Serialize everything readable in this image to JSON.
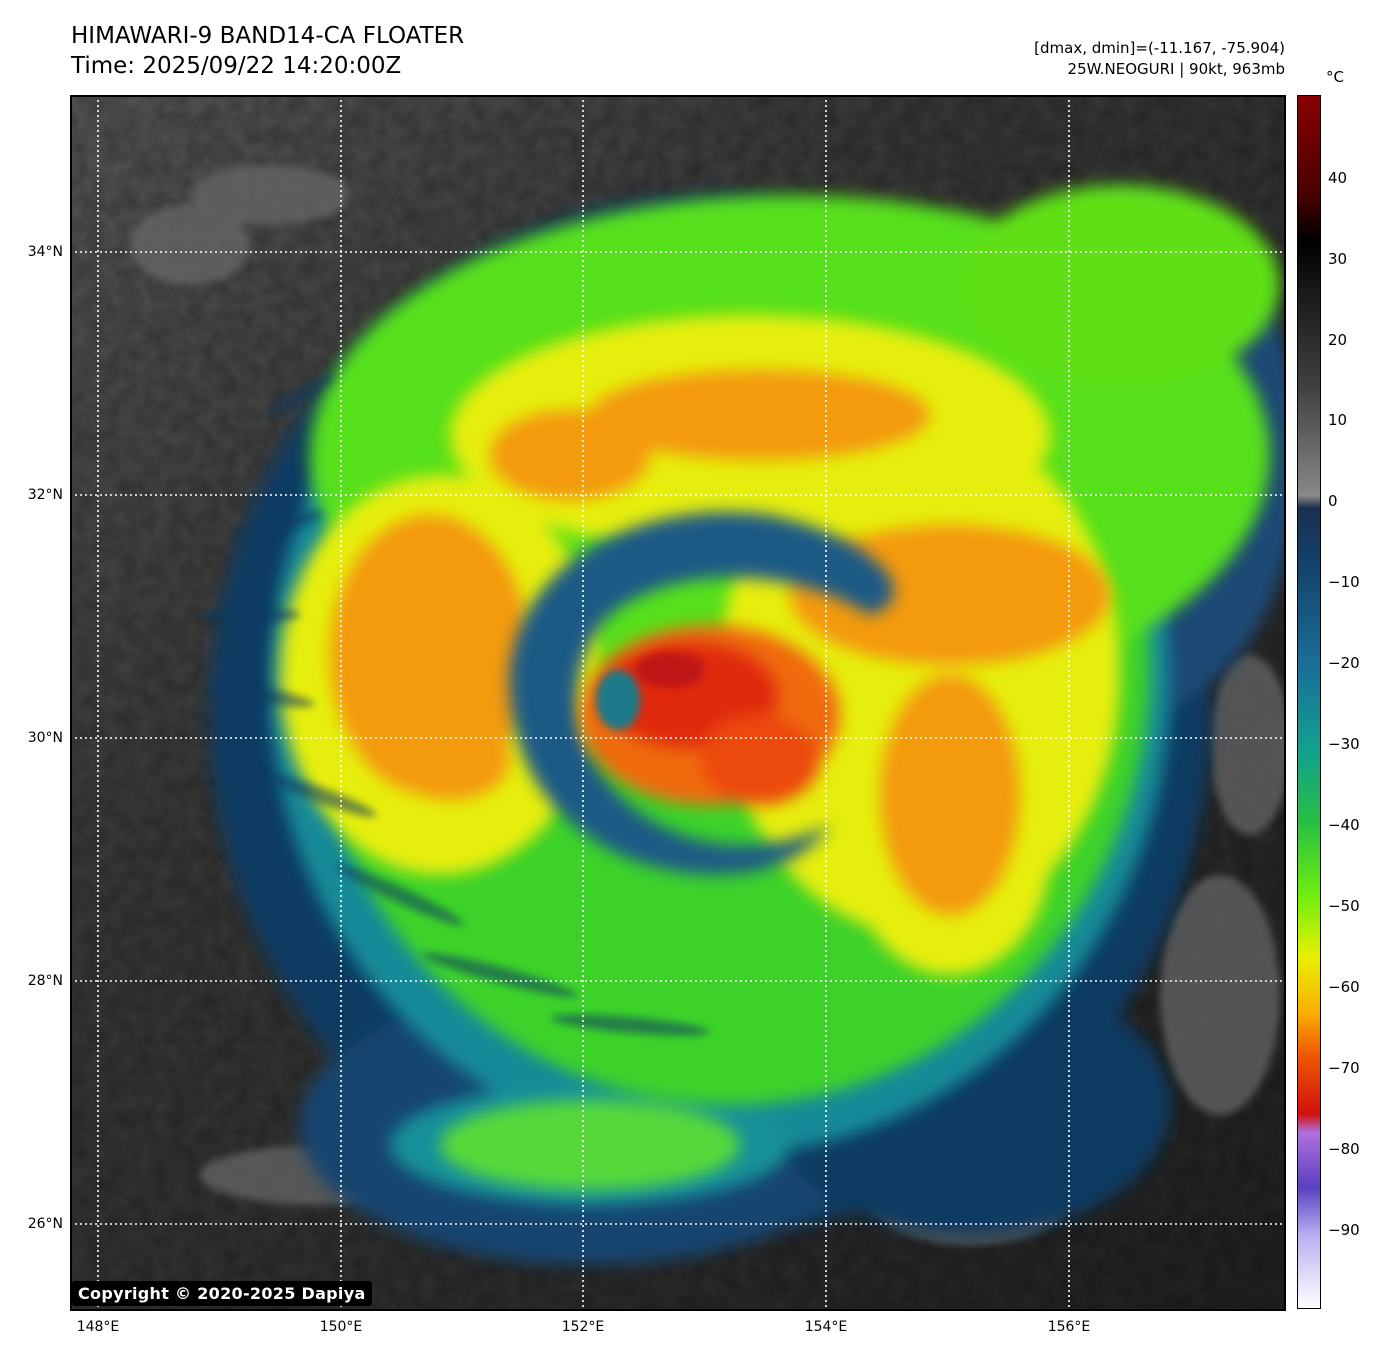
{
  "header": {
    "title_line1": "HIMAWARI-9 BAND14-CA FLOATER",
    "title_line2": "Time: 2025/09/22 14:20:00Z",
    "dmax_dmin": "[dmax, dmin]=(-11.167, -75.904)",
    "storm_info": "25W.NEOGURI | 90kt, 963mb"
  },
  "map": {
    "lat_labels": [
      "34°N",
      "32°N",
      "30°N",
      "28°N",
      "26°N"
    ],
    "lon_labels": [
      "148°E",
      "150°E",
      "152°E",
      "154°E",
      "156°E"
    ],
    "copyright": "Copyright © 2020-2025 Dapiya"
  },
  "colorbar": {
    "unit": "°C",
    "ticks": [
      "40",
      "30",
      "20",
      "10",
      "0",
      "−10",
      "−20",
      "−30",
      "−40",
      "−50",
      "−60",
      "−70",
      "−80",
      "−90"
    ]
  },
  "colors": {
    "warm_land_ocean": "#333333",
    "dark_blue_band": "#0d3b66",
    "teal": "#1aa3a3",
    "green": "#5fe80f",
    "yellow": "#f2e000",
    "orange": "#f28c00",
    "red": "#e01f0f",
    "purple": "#7a52cc"
  }
}
